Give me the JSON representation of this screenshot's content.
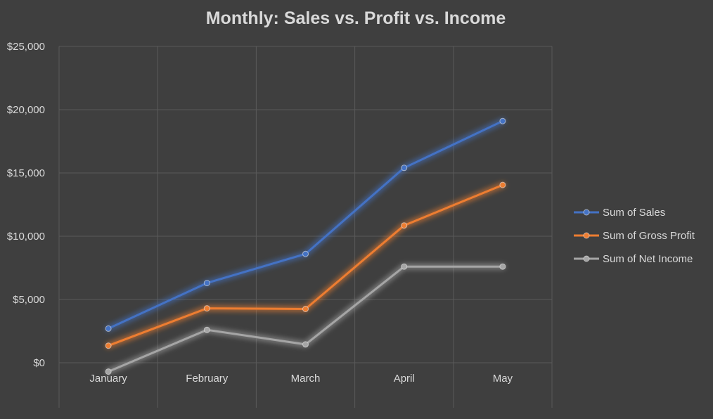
{
  "chart_data": {
    "type": "line",
    "title": "Monthly: Sales vs. Profit vs. Income",
    "categories": [
      "January",
      "February",
      "March",
      "April",
      "May"
    ],
    "y_tick_labels": [
      "$0",
      "$5,000",
      "$10,000",
      "$15,000",
      "$20,000",
      "$25,000"
    ],
    "ylim": [
      0,
      25000
    ],
    "grid": true,
    "legend_position": "right",
    "series": [
      {
        "name": "Sum of Sales",
        "color": "#4472c4",
        "values": [
          2700,
          6300,
          8600,
          15400,
          19100
        ]
      },
      {
        "name": "Sum of Gross Profit",
        "color": "#ed7d31",
        "values": [
          1350,
          4300,
          4250,
          10850,
          14050
        ]
      },
      {
        "name": "Sum of Net Income",
        "color": "#a5a5a5",
        "values": [
          -700,
          2600,
          1450,
          7600,
          7600
        ]
      }
    ]
  }
}
